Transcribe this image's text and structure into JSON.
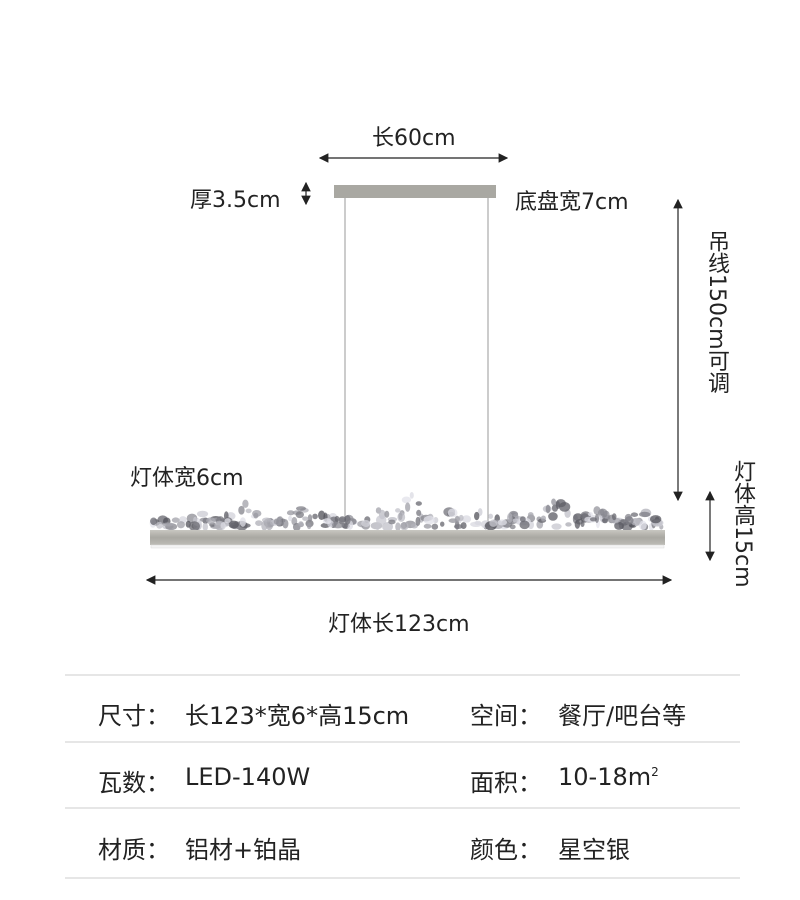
{
  "diagram": {
    "top_length": "长60cm",
    "canopy_thickness": "厚3.5cm",
    "canopy_width": "底盘宽7cm",
    "wire_length": "吊线150cm可调",
    "body_width": "灯体宽6cm",
    "body_height": "灯体高15cm",
    "body_length": "灯体长123cm"
  },
  "specs": [
    {
      "left_key": "尺寸：",
      "left_value": "长123*宽6*高15cm",
      "right_key": "空间：",
      "right_value": "餐厅/吧台等"
    },
    {
      "left_key": "瓦数：",
      "left_value": "LED-140W",
      "right_key": "面积：",
      "right_value": "10-18m",
      "right_sup": "2"
    },
    {
      "left_key": "材质：",
      "left_value": "铝材+铂晶",
      "right_key": "颜色：",
      "right_value": "星空银"
    }
  ],
  "colors": {
    "text": "#222222",
    "divider": "#e6e6e6",
    "metal": "#a9a8a2",
    "crystal": "#6a6d74"
  }
}
